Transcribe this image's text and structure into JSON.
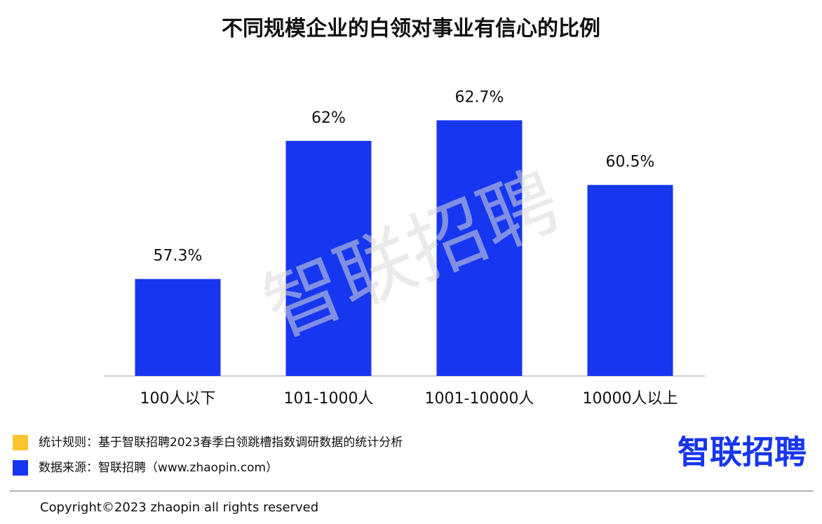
{
  "chart_data": {
    "type": "bar",
    "title": "不同规模企业的白领对事业有信心的比例",
    "categories": [
      "100人以下",
      "101-1000人",
      "1001-10000人",
      "10000人以上"
    ],
    "values": [
      57.3,
      62,
      62.7,
      60.5
    ],
    "value_labels": [
      "57.3%",
      "62%",
      "62.7%",
      "60.5%"
    ],
    "color": "#1736f0",
    "ylim": [
      54,
      64
    ]
  },
  "notes": [
    {
      "text": "统计规则：基于智联招聘2023春季白领跳槽指数调研数据的统计分析",
      "color": "#fcc42c"
    },
    {
      "text": "数据来源：智联招聘（www.zhaopin.com）",
      "color": "#1736f0"
    }
  ],
  "logo": "智联招聘",
  "watermark": "智联招聘",
  "copyright": "Copyright©2023 zhaopin all rights reserved"
}
